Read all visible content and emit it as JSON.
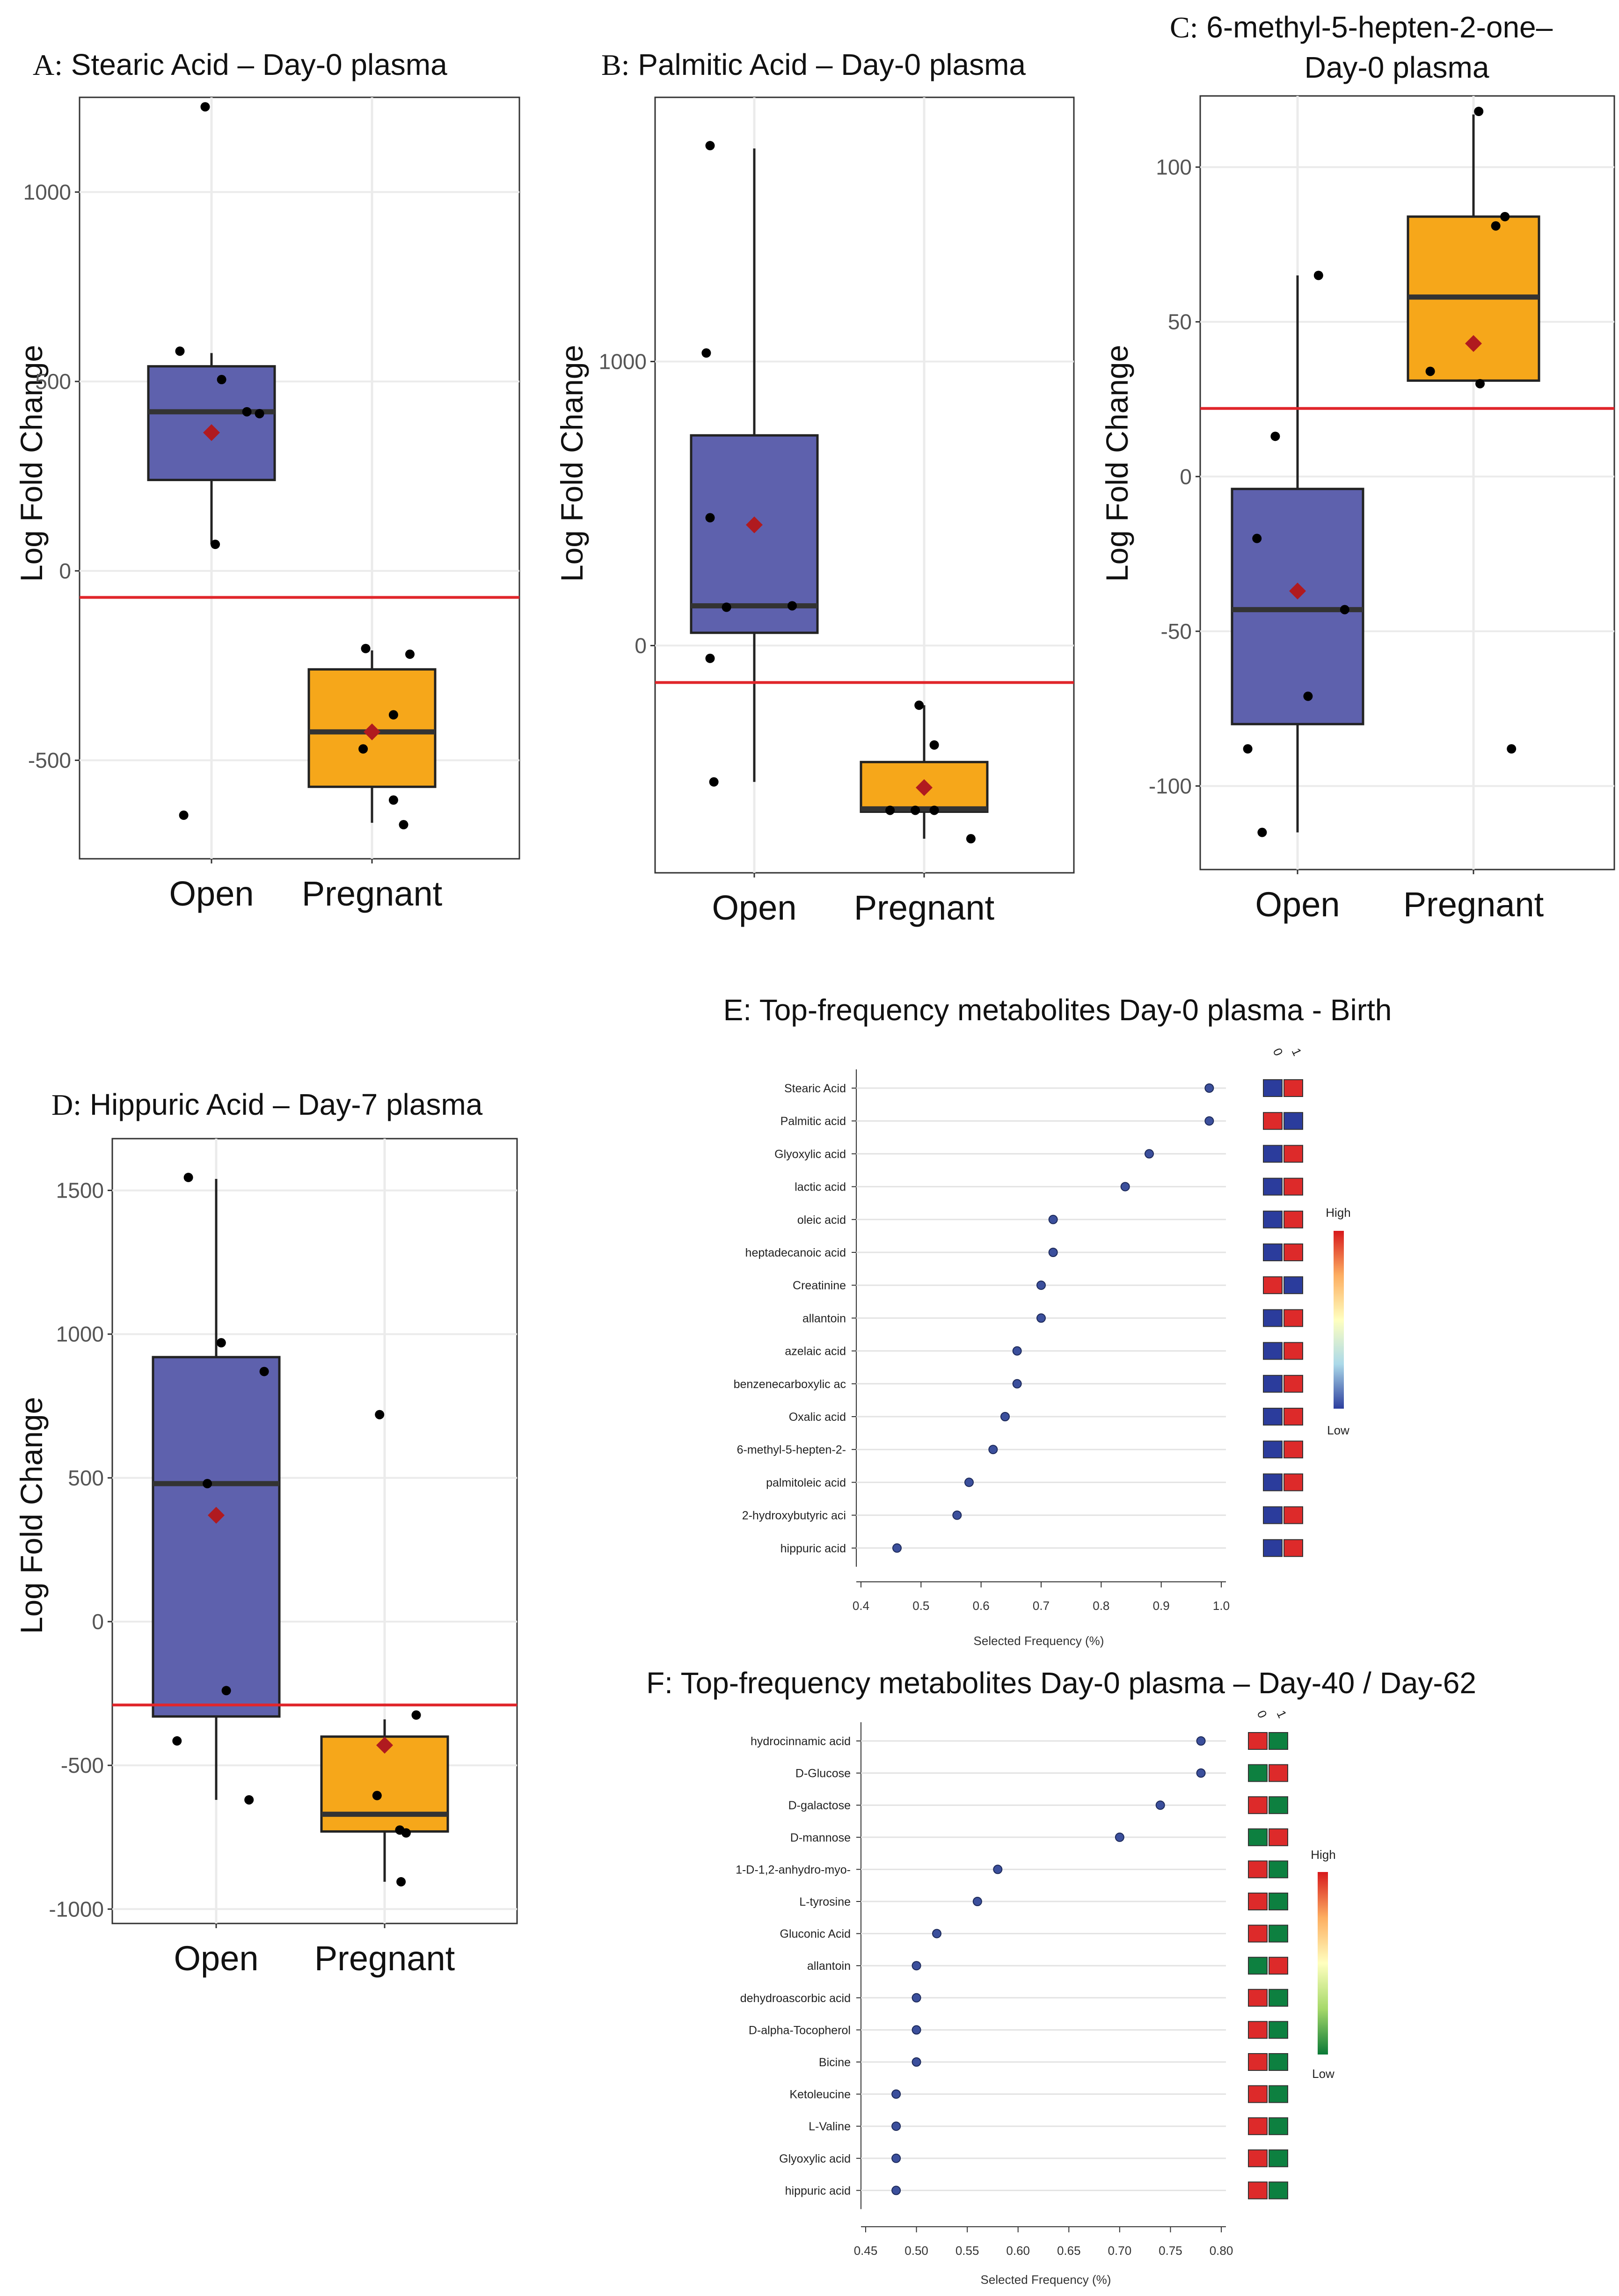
{
  "figure": {
    "panel_a": {
      "title_letter": "A:",
      "title_text": " Stearic Acid – Day-0 plasma",
      "ylabel": "Log Fold Change"
    },
    "panel_b": {
      "title_letter": "B:",
      "title_text": " Palmitic Acid – Day-0 plasma",
      "ylabel": "Log Fold Change"
    },
    "panel_c": {
      "title_letter": "C:",
      "title_line1": " 6-methyl-5-hepten-2-one–",
      "title_line2": "Day-0 plasma",
      "ylabel": "Log Fold Change"
    },
    "panel_d": {
      "title_letter": "D:",
      "title_text": " Hippuric Acid – Day-7 plasma",
      "ylabel": "Log Fold Change"
    },
    "panel_e": {
      "title": "E: Top-frequency metabolites Day-0 plasma - Birth",
      "xlabel": "Selected Frequency (%)",
      "legend_high": "High",
      "legend_low": "Low",
      "col_headers": [
        "0",
        "1"
      ]
    },
    "panel_f": {
      "title": "F: Top-frequency metabolites Day-0 plasma – Day-40 / Day-62",
      "xlabel": "Selected Frequency (%)",
      "legend_high": "High",
      "legend_low": "Low",
      "col_headers": [
        "0",
        "1"
      ]
    }
  },
  "colors": {
    "open_box": "#5e61ad",
    "pregnant_box": "#f6a71a",
    "mean_marker": "#b01a1f",
    "threshold_line": "#e0262b",
    "grid": "#ebebeb",
    "heat_blue": "#2b3c9c",
    "heat_red": "#dd2a2a",
    "heat_green": "#0d8040"
  },
  "chart_data": [
    {
      "id": "A",
      "type": "box",
      "title": "A: Stearic Acid – Day-0 plasma",
      "ylabel": "Log Fold Change",
      "categories": [
        "Open",
        "Pregnant"
      ],
      "ylim": [
        -760,
        1250
      ],
      "yticks": [
        -500,
        0,
        500,
        1000
      ],
      "threshold": -70,
      "groups": [
        {
          "name": "Open",
          "q1": 240,
          "median": 420,
          "q3": 540,
          "whisker_low": 70,
          "whisker_high": 575,
          "mean": 365,
          "points": [
            [
              -0.25,
              580
            ],
            [
              -0.05,
              1225
            ],
            [
              0.08,
              505
            ],
            [
              0.28,
              420
            ],
            [
              0.38,
              415
            ],
            [
              0.03,
              70
            ],
            [
              -0.22,
              -645
            ]
          ]
        },
        {
          "name": "Pregnant",
          "q1": -570,
          "median": -425,
          "q3": -260,
          "whisker_low": -665,
          "whisker_high": -210,
          "mean": -425,
          "points": [
            [
              -0.05,
              -205
            ],
            [
              0.3,
              -220
            ],
            [
              0.17,
              -380
            ],
            [
              -0.07,
              -470
            ],
            [
              0.17,
              -605
            ],
            [
              0.25,
              -670
            ]
          ]
        }
      ]
    },
    {
      "id": "B",
      "type": "box",
      "title": "B: Palmitic Acid – Day-0 plasma",
      "ylabel": "Log Fold Change",
      "categories": [
        "Open",
        "Pregnant"
      ],
      "ylim": [
        -800,
        1930
      ],
      "yticks": [
        0,
        1000
      ],
      "threshold": -130,
      "groups": [
        {
          "name": "Open",
          "q1": 45,
          "median": 140,
          "q3": 740,
          "whisker_low": -480,
          "whisker_high": 1750,
          "mean": 425,
          "points": [
            [
              -0.35,
              1760
            ],
            [
              -0.38,
              1030
            ],
            [
              -0.35,
              450
            ],
            [
              -0.22,
              135
            ],
            [
              0.3,
              140
            ],
            [
              -0.35,
              -45
            ],
            [
              -0.32,
              -480
            ]
          ]
        },
        {
          "name": "Pregnant",
          "q1": -585,
          "median": -575,
          "q3": -410,
          "whisker_low": -680,
          "whisker_high": -210,
          "mean": -500,
          "points": [
            [
              -0.04,
              -210
            ],
            [
              0.08,
              -350
            ],
            [
              -0.27,
              -580
            ],
            [
              -0.07,
              -580
            ],
            [
              0.08,
              -580
            ],
            [
              0.37,
              -680
            ]
          ]
        }
      ]
    },
    {
      "id": "C",
      "type": "box",
      "title": "C: 6-methyl-5-hepten-2-one– Day-0 plasma",
      "ylabel": "Log Fold Change",
      "categories": [
        "Open",
        "Pregnant"
      ],
      "ylim": [
        -127,
        123
      ],
      "yticks": [
        -100,
        -50,
        0,
        50,
        100
      ],
      "threshold": 22,
      "groups": [
        {
          "name": "Open",
          "q1": -80,
          "median": -43,
          "q3": -4,
          "whisker_low": -115,
          "whisker_high": 65,
          "mean": -37,
          "points": [
            [
              0.16,
              65
            ],
            [
              -0.17,
              13
            ],
            [
              -0.31,
              -20
            ],
            [
              0.36,
              -43
            ],
            [
              0.08,
              -71
            ],
            [
              -0.38,
              -88
            ],
            [
              -0.27,
              -115
            ]
          ]
        },
        {
          "name": "Pregnant",
          "q1": 31,
          "median": 58,
          "q3": 84,
          "whisker_low": 31,
          "whisker_high": 117,
          "mean": 43,
          "points": [
            [
              0.04,
              118
            ],
            [
              0.24,
              84
            ],
            [
              0.17,
              81
            ],
            [
              -0.33,
              34
            ],
            [
              0.05,
              30
            ],
            [
              0.29,
              -88
            ]
          ]
        }
      ]
    },
    {
      "id": "D",
      "type": "box",
      "title": "D: Hippuric Acid – Day-7 plasma",
      "ylabel": "Log Fold Change",
      "categories": [
        "Open",
        "Pregnant"
      ],
      "ylim": [
        -1050,
        1680
      ],
      "yticks": [
        -1000,
        -500,
        0,
        500,
        1000,
        1500
      ],
      "threshold": -290,
      "groups": [
        {
          "name": "Open",
          "q1": -330,
          "median": 480,
          "q3": 920,
          "whisker_low": -620,
          "whisker_high": 1540,
          "mean": 370,
          "points": [
            [
              -0.22,
              1545
            ],
            [
              0.04,
              970
            ],
            [
              0.38,
              870
            ],
            [
              -0.07,
              480
            ],
            [
              0.08,
              -240
            ],
            [
              -0.31,
              -415
            ],
            [
              0.26,
              -620
            ]
          ]
        },
        {
          "name": "Pregnant",
          "q1": -730,
          "median": -670,
          "q3": -400,
          "whisker_low": -905,
          "whisker_high": -340,
          "mean": -430,
          "points": [
            [
              -0.04,
              720
            ],
            [
              0.25,
              -325
            ],
            [
              -0.06,
              -605
            ],
            [
              0.12,
              -725
            ],
            [
              0.17,
              -735
            ],
            [
              0.13,
              -905
            ]
          ]
        }
      ]
    },
    {
      "id": "E",
      "type": "dotplot",
      "title": "E: Top-frequency metabolites Day-0 plasma - Birth",
      "xlabel": "Selected Frequency (%)",
      "xlim": [
        0.4,
        1.0
      ],
      "xticks": [
        0.4,
        0.5,
        0.6,
        0.7,
        0.8,
        0.9,
        1.0
      ],
      "xtick_labels": [
        "0.4",
        "0.5",
        "0.6",
        "0.7",
        "0.8",
        "0.9",
        "1.0"
      ],
      "heatmap_columns": [
        "0",
        "1"
      ],
      "palette": "blue-red",
      "rows": [
        {
          "label": "Stearic Acid",
          "value": 0.98,
          "heat": [
            "low",
            "high"
          ]
        },
        {
          "label": "Palmitic acid",
          "value": 0.98,
          "heat": [
            "high",
            "low"
          ]
        },
        {
          "label": "Glyoxylic acid",
          "value": 0.88,
          "heat": [
            "low",
            "high"
          ]
        },
        {
          "label": "lactic acid",
          "value": 0.84,
          "heat": [
            "low",
            "high"
          ]
        },
        {
          "label": "oleic acid",
          "value": 0.72,
          "heat": [
            "low",
            "high"
          ]
        },
        {
          "label": "heptadecanoic acid",
          "value": 0.72,
          "heat": [
            "low",
            "high"
          ]
        },
        {
          "label": "Creatinine",
          "value": 0.7,
          "heat": [
            "high",
            "low"
          ]
        },
        {
          "label": "allantoin",
          "value": 0.7,
          "heat": [
            "low",
            "high"
          ]
        },
        {
          "label": "azelaic acid",
          "value": 0.66,
          "heat": [
            "low",
            "high"
          ]
        },
        {
          "label": "benzenecarboxylic ac",
          "value": 0.66,
          "heat": [
            "low",
            "high"
          ]
        },
        {
          "label": "Oxalic acid",
          "value": 0.64,
          "heat": [
            "low",
            "high"
          ]
        },
        {
          "label": "6-methyl-5-hepten-2-",
          "value": 0.62,
          "heat": [
            "low",
            "high"
          ]
        },
        {
          "label": "palmitoleic acid",
          "value": 0.58,
          "heat": [
            "low",
            "high"
          ]
        },
        {
          "label": "2-hydroxybutyric aci",
          "value": 0.56,
          "heat": [
            "low",
            "high"
          ]
        },
        {
          "label": "hippuric acid",
          "value": 0.46,
          "heat": [
            "low",
            "high"
          ]
        }
      ],
      "legend": {
        "high": "High",
        "low": "Low"
      }
    },
    {
      "id": "F",
      "type": "dotplot",
      "title": "F: Top-frequency metabolites Day-0 plasma – Day-40 / Day-62",
      "xlabel": "Selected Frequency (%)",
      "xlim": [
        0.45,
        0.8
      ],
      "xticks": [
        0.45,
        0.5,
        0.55,
        0.6,
        0.65,
        0.7,
        0.75,
        0.8
      ],
      "xtick_labels": [
        "0.45",
        "0.50",
        "0.55",
        "0.60",
        "0.65",
        "0.70",
        "0.75",
        "0.80"
      ],
      "heatmap_columns": [
        "0",
        "1"
      ],
      "palette": "green-red",
      "rows": [
        {
          "label": "hydrocinnamic acid",
          "value": 0.78,
          "heat": [
            "high",
            "low"
          ]
        },
        {
          "label": "D-Glucose",
          "value": 0.78,
          "heat": [
            "low",
            "high"
          ]
        },
        {
          "label": "D-galactose",
          "value": 0.74,
          "heat": [
            "high",
            "low"
          ]
        },
        {
          "label": "D-mannose",
          "value": 0.7,
          "heat": [
            "low",
            "high"
          ]
        },
        {
          "label": "1-D-1,2-anhydro-myo-",
          "value": 0.58,
          "heat": [
            "high",
            "low"
          ]
        },
        {
          "label": "L-tyrosine",
          "value": 0.56,
          "heat": [
            "high",
            "low"
          ]
        },
        {
          "label": "Gluconic Acid",
          "value": 0.52,
          "heat": [
            "high",
            "low"
          ]
        },
        {
          "label": "allantoin",
          "value": 0.5,
          "heat": [
            "low",
            "high"
          ]
        },
        {
          "label": "dehydroascorbic acid",
          "value": 0.5,
          "heat": [
            "high",
            "low"
          ]
        },
        {
          "label": "D-alpha-Tocopherol",
          "value": 0.5,
          "heat": [
            "high",
            "low"
          ]
        },
        {
          "label": "Bicine",
          "value": 0.5,
          "heat": [
            "high",
            "low"
          ]
        },
        {
          "label": "Ketoleucine",
          "value": 0.48,
          "heat": [
            "high",
            "low"
          ]
        },
        {
          "label": "L-Valine",
          "value": 0.48,
          "heat": [
            "high",
            "low"
          ]
        },
        {
          "label": "Glyoxylic acid",
          "value": 0.48,
          "heat": [
            "high",
            "low"
          ]
        },
        {
          "label": "hippuric acid",
          "value": 0.48,
          "heat": [
            "high",
            "low"
          ]
        }
      ],
      "legend": {
        "high": "High",
        "low": "Low"
      }
    }
  ]
}
